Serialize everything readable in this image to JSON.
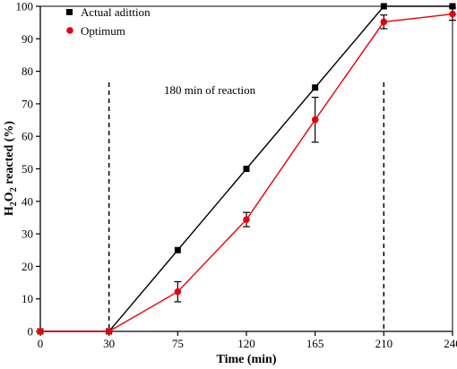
{
  "chart_data": {
    "type": "line",
    "xlabel": "Time (min)",
    "ylabel": {
      "main": "H",
      "sub1": "2",
      "mid": "O",
      "sub2": "2",
      "tail": " reacted (%)"
    },
    "x_ticks": [
      0,
      30,
      75,
      120,
      165,
      210,
      240
    ],
    "y_ticks": [
      0,
      10,
      20,
      30,
      40,
      50,
      60,
      70,
      80,
      90,
      100
    ],
    "ylim": [
      0,
      100
    ],
    "grid": false,
    "legend_position": "top-left",
    "annotation": "180 min of reaction",
    "reference_lines_x": [
      30,
      210
    ],
    "series": [
      {
        "name": "Actual adittion",
        "color": "#000000",
        "marker": "square",
        "x": [
          0,
          30,
          75,
          120,
          165,
          210,
          240
        ],
        "y": [
          0,
          0,
          25,
          50,
          75,
          100,
          100
        ]
      },
      {
        "name": "Optimum",
        "color": "#e8000b",
        "marker": "circle",
        "x": [
          0,
          30,
          75,
          120,
          165,
          210,
          240
        ],
        "y": [
          0,
          0,
          12.2,
          34.4,
          65.1,
          95.2,
          97.6
        ],
        "error": [
          0,
          0,
          3.1,
          2.2,
          6.9,
          2.1,
          1.9
        ]
      }
    ]
  }
}
